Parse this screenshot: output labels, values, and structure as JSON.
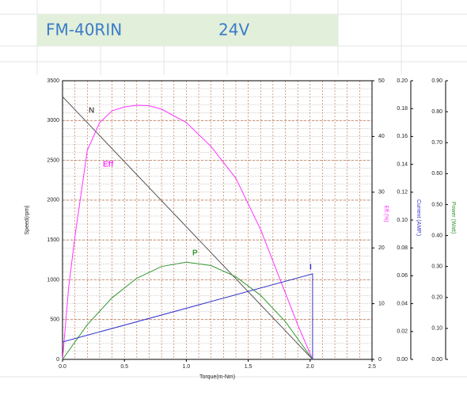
{
  "header": {
    "model": "FM-40RIN",
    "voltage": "24V"
  },
  "chart_data": {
    "type": "line",
    "x_label": "Torque(m-Nm)",
    "y_label": "Speed(rpm)",
    "y2_label": "Eff.(%)",
    "y3_label": "Current (AMP.)",
    "y4_label": "Power (Watt)",
    "xlim": [
      0,
      2.5
    ],
    "xticks": [
      {
        "value": 0,
        "label": "0.0"
      },
      0.5,
      {
        "value": 1,
        "label": "1.0"
      },
      1.5,
      {
        "value": 2,
        "label": "2.0"
      },
      2.5
    ],
    "ylim": [
      0,
      3500
    ],
    "yticks": [
      0,
      500,
      1000,
      1500,
      2000,
      2500,
      3000,
      3500
    ],
    "y2lim": [
      0,
      50
    ],
    "y2ticks": [
      0,
      10,
      20,
      30,
      40,
      50
    ],
    "y3lim": [
      0,
      0.2
    ],
    "y3ticks": [
      {
        "value": 0,
        "label": "0.00"
      },
      0.02,
      0.04,
      0.06,
      0.08,
      {
        "value": 0.1,
        "label": "0.10"
      },
      0.12,
      0.14,
      0.16,
      0.18,
      {
        "value": 0.2,
        "label": "0.20"
      }
    ],
    "y4lim": [
      0,
      0.9
    ],
    "y4ticks": [
      {
        "value": 0,
        "label": "0.00"
      },
      {
        "value": 0.1,
        "label": "0.10"
      },
      {
        "value": 0.2,
        "label": "0.20"
      },
      {
        "value": 0.3,
        "label": "0.30"
      },
      {
        "value": 0.4,
        "label": "0.40"
      },
      {
        "value": 0.5,
        "label": "0.50"
      },
      {
        "value": 0.6,
        "label": "0.60"
      },
      {
        "value": 0.7,
        "label": "0.70"
      },
      {
        "value": 0.8,
        "label": "0.80"
      },
      {
        "value": 0.9,
        "label": "0.90"
      }
    ],
    "grid": true,
    "series": [
      {
        "name": "N",
        "color": "#555555",
        "axis": "y",
        "x": [
          0,
          2.02
        ],
        "values": [
          3300,
          0
        ]
      },
      {
        "name": "Eff",
        "color": "#ff33ff",
        "axis": "y2",
        "x": [
          0,
          0.05,
          0.1,
          0.2,
          0.3,
          0.4,
          0.5,
          0.6,
          0.7,
          0.8,
          1.0,
          1.2,
          1.4,
          1.6,
          1.8,
          1.9,
          2.02
        ],
        "values": [
          0,
          13,
          22,
          37.5,
          42.5,
          44.6,
          45.3,
          45.6,
          45.5,
          44.9,
          42.5,
          38.2,
          32.5,
          23.3,
          11.9,
          6.2,
          0
        ]
      },
      {
        "name": "P",
        "color": "#339933",
        "axis": "y4",
        "x": [
          0,
          0.2,
          0.4,
          0.6,
          0.8,
          1.0,
          1.2,
          1.4,
          1.6,
          1.8,
          2.02
        ],
        "values": [
          0,
          0.112,
          0.199,
          0.262,
          0.3,
          0.314,
          0.303,
          0.267,
          0.207,
          0.122,
          0
        ]
      },
      {
        "name": "I",
        "color": "#3333cc",
        "axis": "y3",
        "x": [
          0,
          2.02,
          2.02
        ],
        "values": [
          0.0125,
          0.0614,
          0
        ]
      }
    ]
  }
}
